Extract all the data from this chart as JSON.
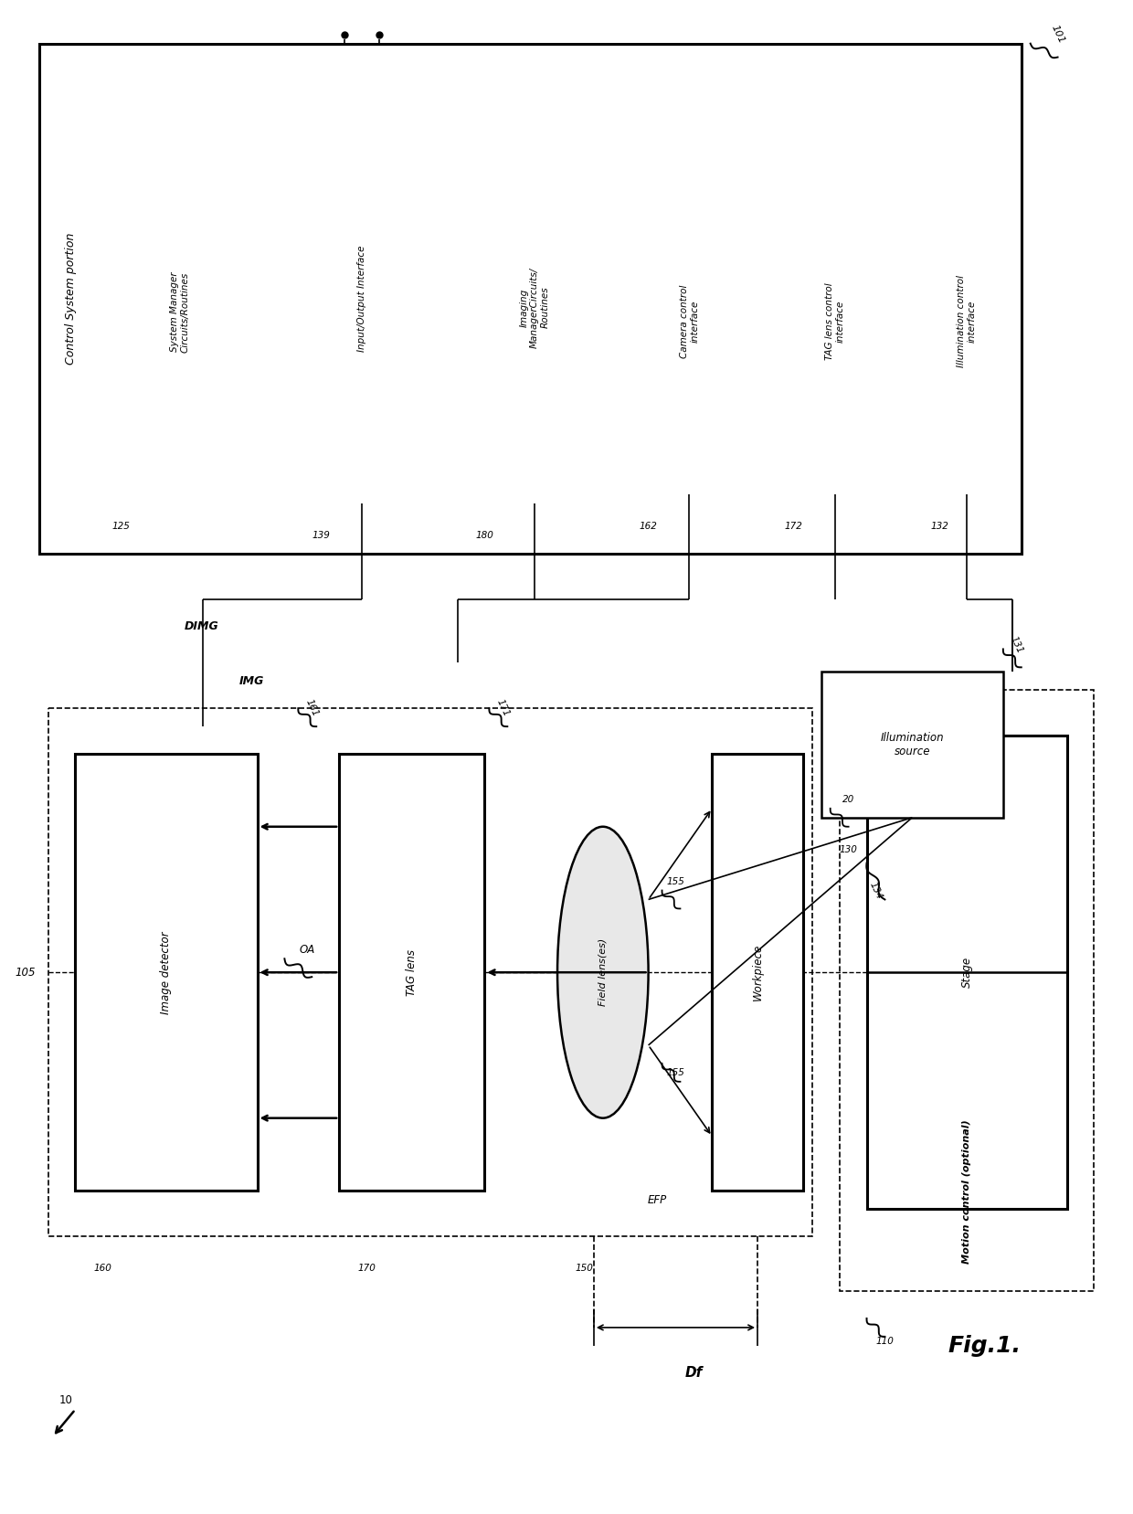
{
  "title": "Fig.1.",
  "bg_color": "#ffffff",
  "ref_101": "101",
  "ref_10": "10",
  "control_system_label": "Control System portion",
  "ref_125": "125",
  "sys_manager_label": "System Manager\nCircuits/Routines",
  "ref_139": "139",
  "io_interface_label": "Input/Output Interface",
  "ref_180": "180",
  "imaging_label": "Imaging\nManagerCircuits/\nRoutines",
  "ref_162": "162",
  "camera_ctrl_label": "Camera control\ninterface",
  "ref_172": "172",
  "tag_lens_ctrl_label": "TAG lens control\ninterface",
  "ref_132": "132",
  "illum_ctrl_label": "Illumination control\ninterface",
  "ref_131": "131",
  "illum_source_label": "Illumination\nsource",
  "ref_130": "130",
  "ref_134": "134",
  "ref_20": "20",
  "ref_105": "105",
  "image_detector_label": "Image detector",
  "ref_160": "160",
  "oa_label": "OA",
  "tag_lens_label": "TAG lens",
  "ref_170": "170",
  "field_lens_label": "Field lens(es)",
  "ref_150": "150",
  "workpiece_label": "Workpiece",
  "stage_label": "Stage",
  "ref_110": "110",
  "motion_ctrl_label": "Motion control (optional)",
  "ref_155_top": "155",
  "ref_155_bot": "155",
  "efp_label": "EFP",
  "df_label": "Df",
  "img_label": "IMG",
  "dimg_label": "DIMG",
  "ref_161": "161",
  "ref_171": "171"
}
